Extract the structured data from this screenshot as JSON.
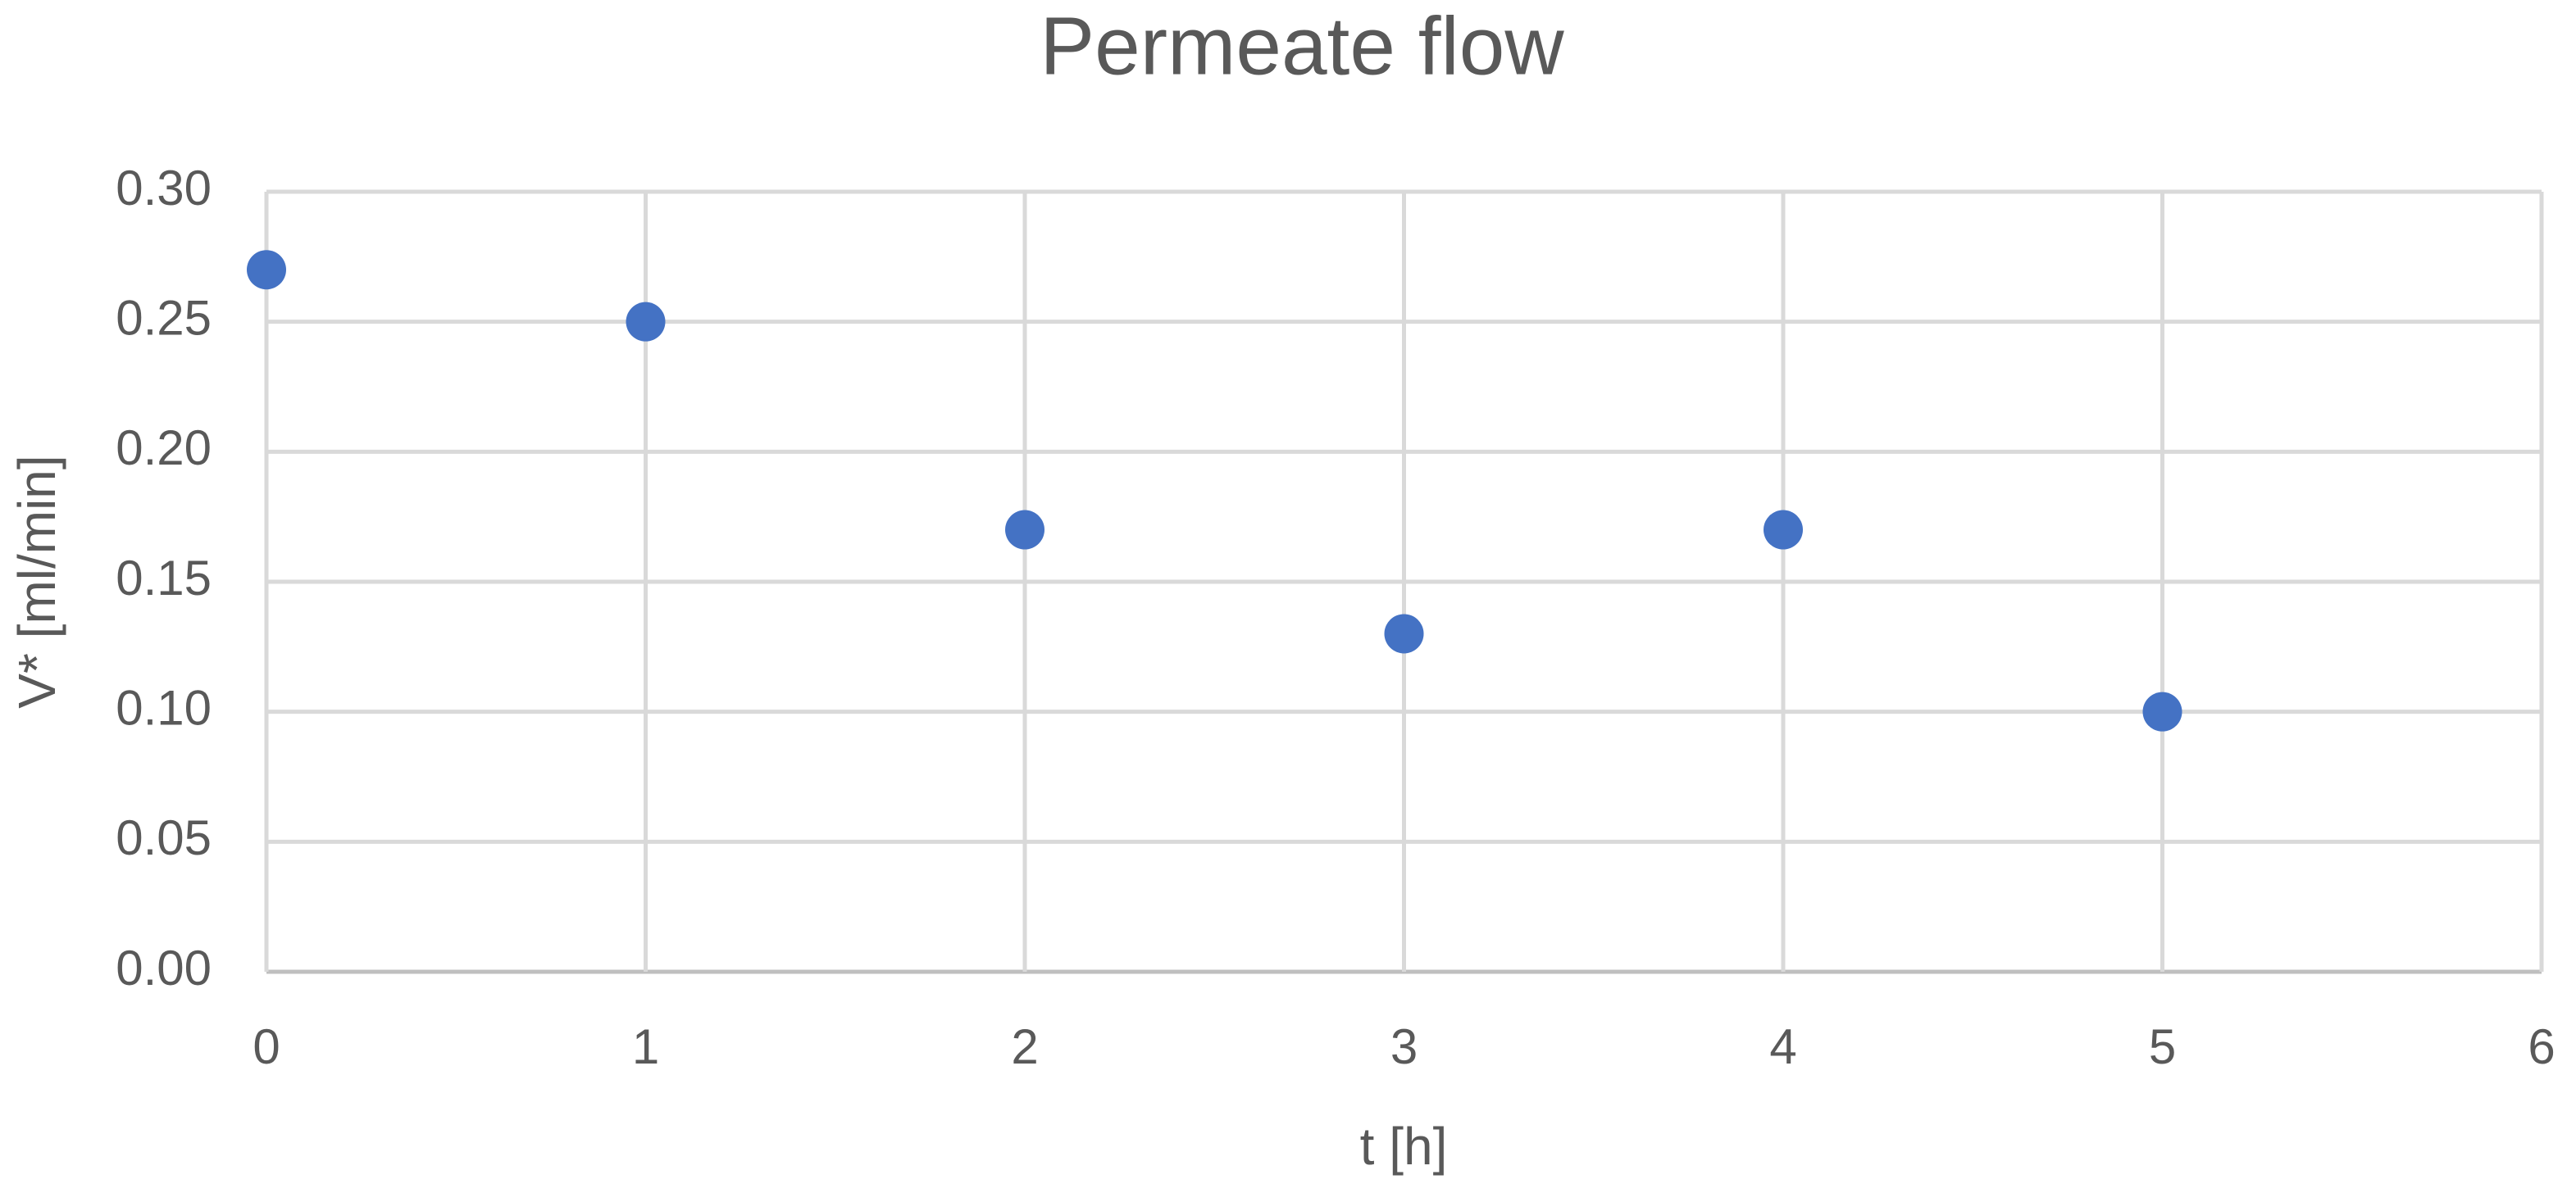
{
  "chart_data": {
    "type": "scatter",
    "title": "Permeate flow",
    "x_label": "t [h]",
    "y_label": "V* [ml/min]",
    "x": [
      0,
      1,
      2,
      3,
      4,
      5
    ],
    "values": [
      0.27,
      0.25,
      0.17,
      0.13,
      0.17,
      0.1
    ],
    "color": "#4472c4",
    "xlim": [
      0,
      6
    ],
    "xticks": [
      0,
      1,
      2,
      3,
      4,
      5,
      6
    ],
    "ylim": [
      0,
      0.3
    ],
    "yticks": [
      {
        "value": 0,
        "label": "0.00"
      },
      0.05,
      {
        "value": 0.1,
        "label": "0.10"
      },
      0.15,
      {
        "value": 0.2,
        "label": "0.20"
      },
      0.25,
      {
        "value": 0.3,
        "label": "0.30"
      }
    ],
    "grid": true
  }
}
